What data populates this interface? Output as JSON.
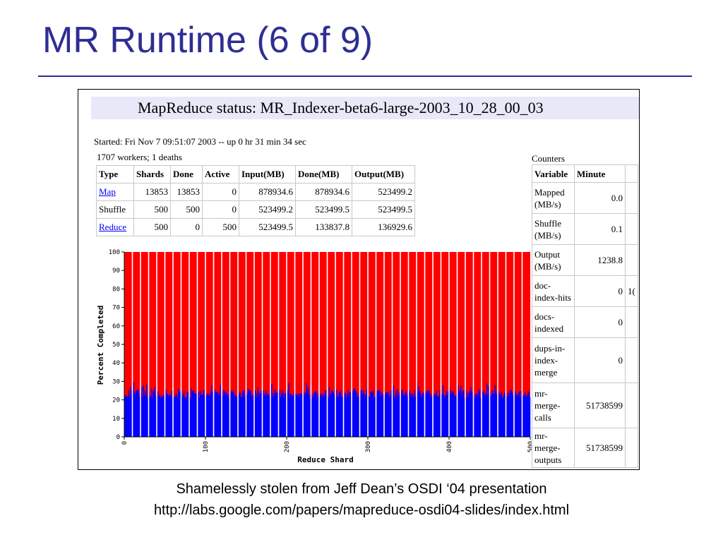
{
  "slide": {
    "title": "MR Runtime (6 of 9)",
    "caption_line1": "Shamelessly stolen from Jeff Dean’s OSDI ‘04 presentation",
    "caption_line2": "http://labs.google.com/papers/mapreduce-osdi04-slides/index.html"
  },
  "status": {
    "header": "MapReduce status: MR_Indexer-beta6-large-2003_10_28_00_03",
    "started": "Started: Fri Nov 7 09:51:07 2003 -- up 0 hr 31 min 34 sec",
    "workers": "1707 workers; 1 deaths"
  },
  "job_table": {
    "headers": [
      "Type",
      "Shards",
      "Done",
      "Active",
      "Input(MB)",
      "Done(MB)",
      "Output(MB)"
    ],
    "rows": [
      [
        "Map",
        "13853",
        "13853",
        "0",
        "878934.6",
        "878934.6",
        "523499.2"
      ],
      [
        "Shuffle",
        "500",
        "500",
        "0",
        "523499.2",
        "523499.5",
        "523499.5"
      ],
      [
        "Reduce",
        "500",
        "0",
        "500",
        "523499.5",
        "133837.8",
        "136929.6"
      ]
    ],
    "link_rows": [
      0,
      2
    ]
  },
  "counters": {
    "caption": "Counters",
    "headers": [
      "Variable",
      "Minute"
    ],
    "rows": [
      [
        "Mapped (MB/s)",
        "0.0",
        ""
      ],
      [
        "Shuffle (MB/s)",
        "0.1",
        ""
      ],
      [
        "Output (MB/s)",
        "1238.8",
        ""
      ],
      [
        "doc-index-hits",
        "0",
        "1("
      ],
      [
        "docs-indexed",
        "0",
        ""
      ],
      [
        "dups-in-index-merge",
        "0",
        ""
      ],
      [
        "mr-merge-calls",
        "51738599",
        ""
      ],
      [
        "mr-merge-outputs",
        "51738599",
        ""
      ]
    ]
  },
  "chart_data": {
    "type": "bar",
    "stacked": true,
    "xlabel": "Reduce Shard",
    "ylabel": "Percent Completed",
    "xlim": [
      0,
      500
    ],
    "ylim": [
      0,
      100
    ],
    "x_ticks": [
      "0",
      "100",
      "200",
      "300",
      "400",
      "500"
    ],
    "y_ticks": [
      "0",
      "10",
      "20",
      "30",
      "40",
      "50",
      "60",
      "70",
      "80",
      "90",
      "100"
    ],
    "bar_count": 500,
    "series": [
      {
        "name": "",
        "color": "#0000ff",
        "approx_values": "about 20-28 percent completed per shard, fluctuating"
      },
      {
        "name": "",
        "color": "#ff0000",
        "approx_values": "remainder up to 100 percent"
      }
    ]
  }
}
